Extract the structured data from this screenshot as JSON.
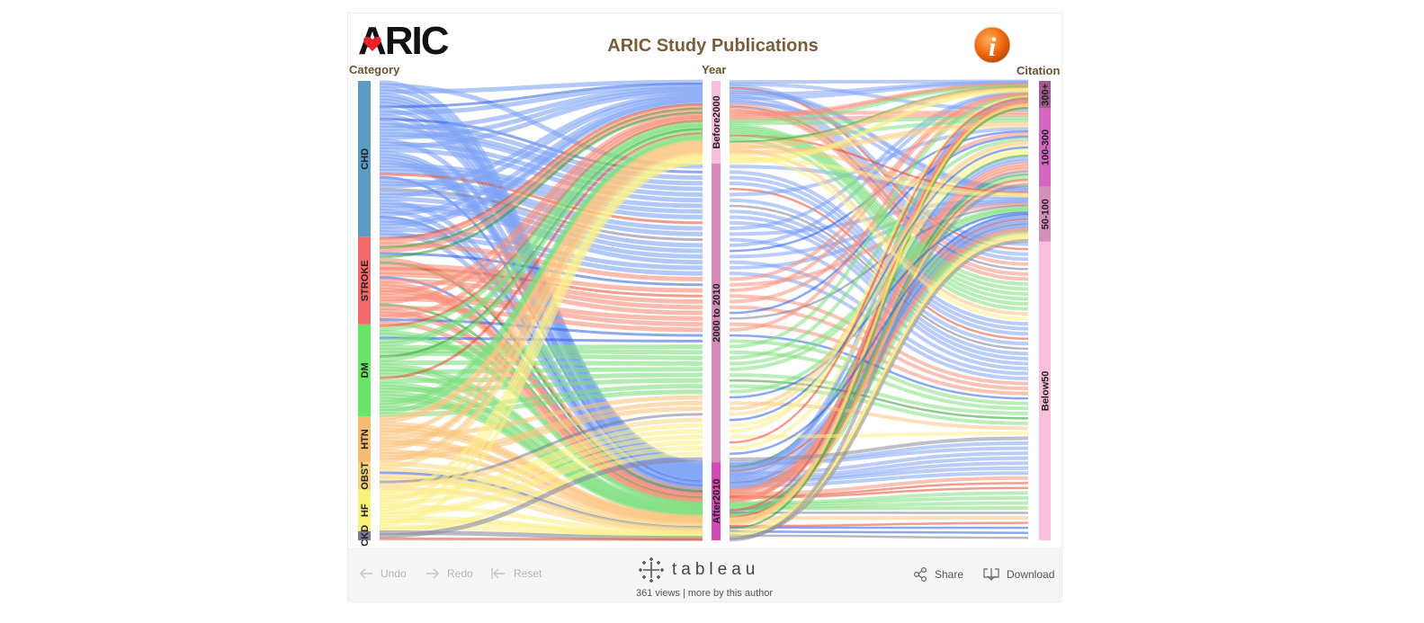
{
  "logo": {
    "text": "ARIC"
  },
  "title": "ARIC Study Publications",
  "info_icon": "info-icon",
  "chart_data": {
    "type": "sankey",
    "title": "ARIC Study Publications",
    "dimension_labels": [
      "Category",
      "Year",
      "Citation"
    ],
    "categories": [
      {
        "label": "CHD",
        "value": 34,
        "color": "#5b9bc4"
      },
      {
        "label": "STROKE",
        "value": 19,
        "color": "#f36b6b"
      },
      {
        "label": "DM",
        "value": 20,
        "color": "#67e567"
      },
      {
        "label": "HTN",
        "value": 10,
        "color": "#f7bb72"
      },
      {
        "label": "OBST",
        "value": 6,
        "color": "#f7d27a"
      },
      {
        "label": "HF",
        "value": 9,
        "color": "#f9f27a"
      },
      {
        "label": "CKD",
        "value": 2,
        "color": "#7a7a96"
      }
    ],
    "years": [
      {
        "label": "Before2000",
        "value": 18,
        "color": "#f9bedb"
      },
      {
        "label": "2000 to 2010",
        "value": 65,
        "color": "#d58bba"
      },
      {
        "label": "After2010",
        "value": 17,
        "color": "#d349b6"
      }
    ],
    "citations": [
      {
        "label": "300+",
        "value": 6,
        "color": "#a5588f"
      },
      {
        "label": "100-300",
        "value": 17,
        "color": "#d666c4"
      },
      {
        "label": "50-100",
        "value": 12,
        "color": "#d58fba"
      },
      {
        "label": "Below50",
        "value": 65,
        "color": "#fbbfdb"
      }
    ],
    "ribbon_colors": {
      "CHD": "#7fa3f5",
      "STROKE": "#f8907a",
      "DM": "#7fe07f",
      "HTN": "#fbc47e",
      "OBST": "#fbd98a",
      "HF": "#fbf089",
      "CKD": "#8a8aa0"
    },
    "highlight_colors": [
      "#2c5ee8",
      "#2f9e2f",
      "#e84c2c",
      "#7a7a96"
    ]
  },
  "footer": {
    "undo": "Undo",
    "redo": "Redo",
    "reset": "Reset",
    "brand": "tableau",
    "views": "361 views",
    "separator": "|",
    "more": "more by this author",
    "share": "Share",
    "download": "Download"
  }
}
